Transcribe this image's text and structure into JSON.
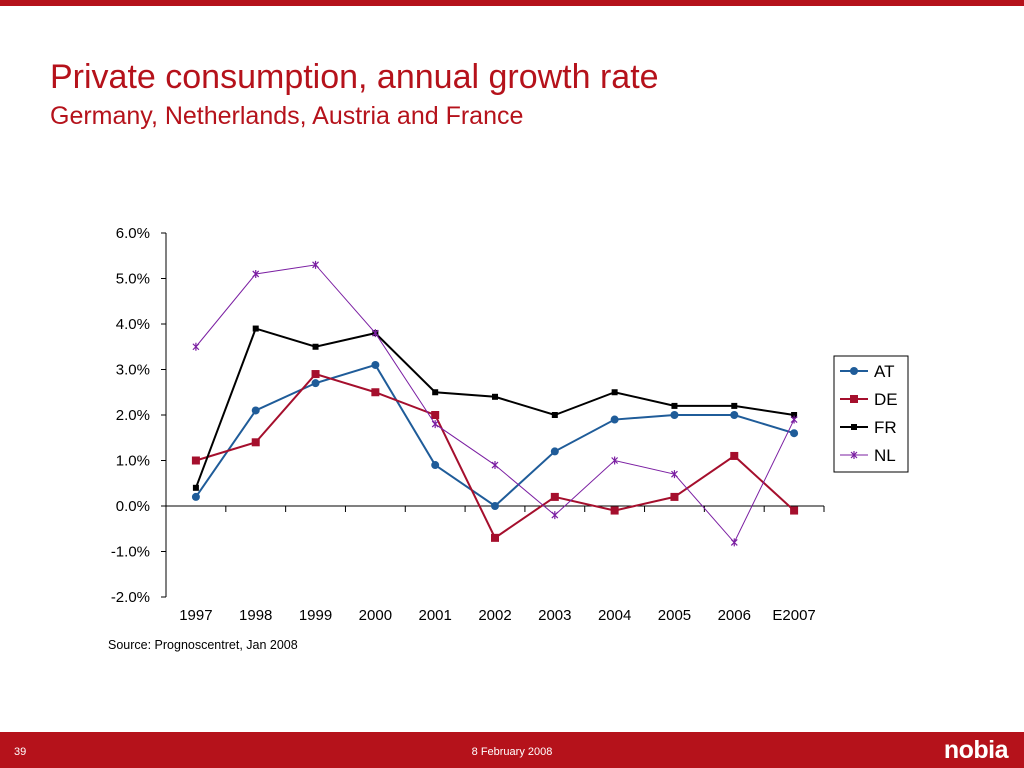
{
  "slide": {
    "title": "Private consumption, annual growth rate",
    "subtitle": "Germany, Netherlands, Austria and France",
    "source": "Source: Prognoscentret, Jan 2008",
    "page_number": "39",
    "date": "8 February 2008",
    "logo_text": "nobia"
  },
  "colors": {
    "brand_red": "#b5121b"
  },
  "chart_data": {
    "type": "line",
    "categories": [
      "1997",
      "1998",
      "1999",
      "2000",
      "2001",
      "2002",
      "2003",
      "2004",
      "2005",
      "2006",
      "E2007"
    ],
    "ylim": [
      -2.0,
      6.0
    ],
    "yticks": [
      -2.0,
      -1.0,
      0.0,
      1.0,
      2.0,
      3.0,
      4.0,
      5.0,
      6.0
    ],
    "ytick_labels": [
      "-2.0%",
      "-1.0%",
      "0.0%",
      "1.0%",
      "2.0%",
      "3.0%",
      "4.0%",
      "5.0%",
      "6.0%"
    ],
    "legend_position": "right",
    "grid": false,
    "series": [
      {
        "name": "AT",
        "color": "#1f5c99",
        "marker": "circle",
        "values": [
          0.2,
          2.1,
          2.7,
          3.1,
          0.9,
          0.0,
          1.2,
          1.9,
          2.0,
          2.0,
          1.6
        ]
      },
      {
        "name": "DE",
        "color": "#a50f2d",
        "marker": "square",
        "values": [
          1.0,
          1.4,
          2.9,
          2.5,
          2.0,
          -0.7,
          0.2,
          -0.1,
          0.2,
          1.1,
          -0.1
        ]
      },
      {
        "name": "FR",
        "color": "#000000",
        "marker": "square-small",
        "values": [
          0.4,
          3.9,
          3.5,
          3.8,
          2.5,
          2.4,
          2.0,
          2.5,
          2.2,
          2.2,
          2.0
        ]
      },
      {
        "name": "NL",
        "color": "#7b1fa2",
        "marker": "x",
        "values": [
          3.5,
          5.1,
          5.3,
          3.8,
          1.8,
          0.9,
          -0.2,
          1.0,
          0.7,
          -0.8,
          1.9
        ]
      }
    ]
  }
}
